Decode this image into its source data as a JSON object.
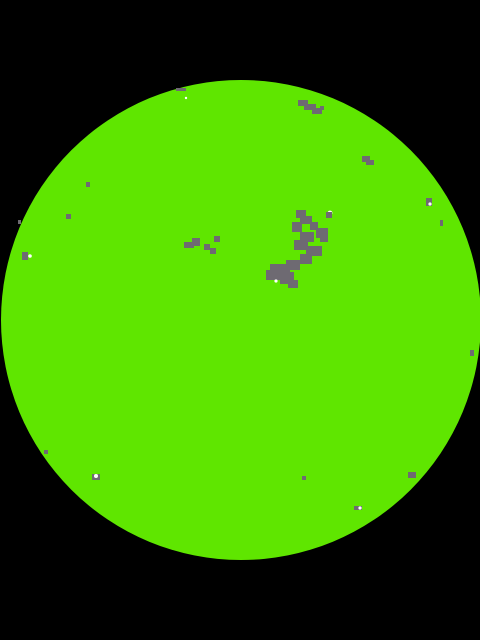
{
  "image": {
    "subject": "solar-disk-mask",
    "colors": {
      "background": "#000000",
      "disk": "#5FE600",
      "region": "#6E6A72",
      "speck": "#FFFFFF"
    }
  }
}
